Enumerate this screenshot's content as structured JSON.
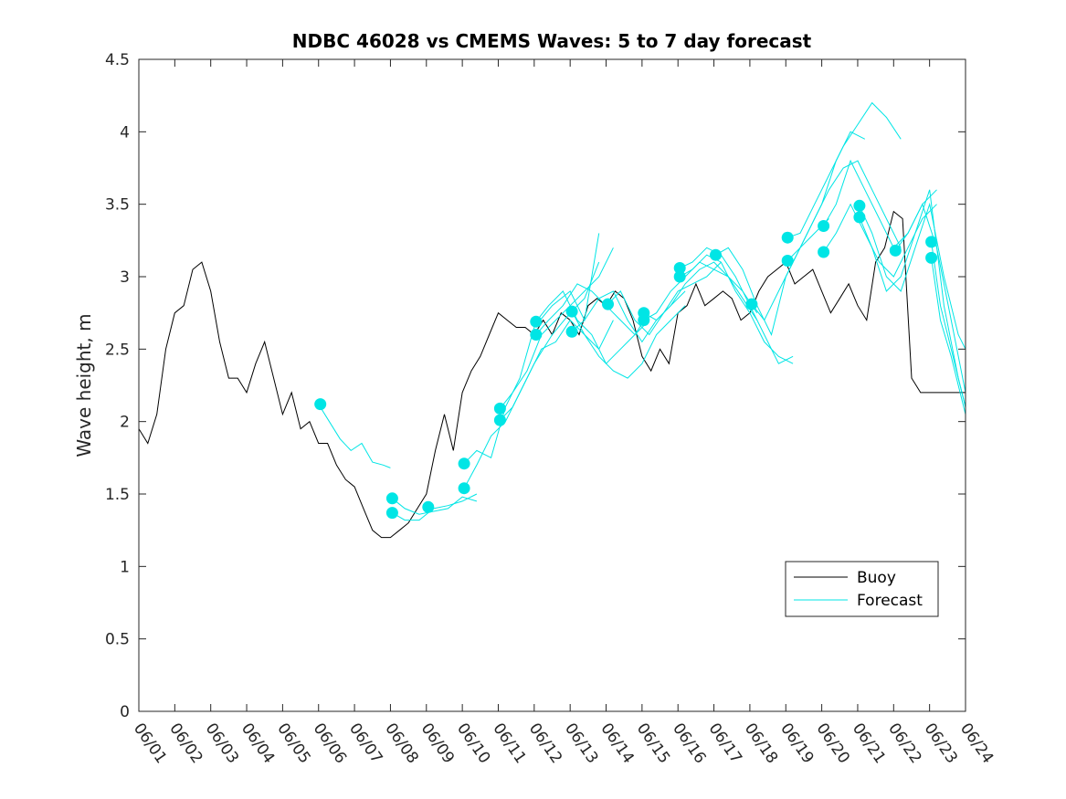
{
  "chart_data": {
    "type": "line",
    "title": "NDBC 46028 vs CMEMS Waves: 5 to 7 day forecast",
    "xlabel": "",
    "ylabel": "Wave height, m",
    "xlim": [
      0,
      23
    ],
    "ylim": [
      0,
      4.5
    ],
    "x_tick_labels": [
      "06/01",
      "06/02",
      "06/03",
      "06/04",
      "06/05",
      "06/06",
      "06/07",
      "06/08",
      "06/09",
      "06/10",
      "06/11",
      "06/12",
      "06/13",
      "06/14",
      "06/15",
      "06/16",
      "06/17",
      "06/18",
      "06/19",
      "06/20",
      "06/21",
      "06/22",
      "06/23",
      "06/24"
    ],
    "y_ticks": [
      0,
      0.5,
      1,
      1.5,
      2,
      2.5,
      3,
      3.5,
      4,
      4.5
    ],
    "y_tick_labels": [
      "0",
      "0.5",
      "1",
      "1.5",
      "2",
      "2.5",
      "3",
      "3.5",
      "4",
      "4.5"
    ],
    "x_units": "days since 06/01",
    "legend": {
      "position": "bottom-right",
      "entries": [
        "Buoy",
        "Forecast"
      ]
    },
    "colors": {
      "buoy": "#000000",
      "forecast": "#00e5e5"
    },
    "series": [
      {
        "name": "Buoy",
        "style": "line",
        "x": [
          0,
          0.25,
          0.5,
          0.75,
          1.0,
          1.25,
          1.5,
          1.75,
          2.0,
          2.25,
          2.5,
          2.75,
          3.0,
          3.25,
          3.5,
          3.75,
          4.0,
          4.25,
          4.5,
          4.75,
          5.0,
          5.25,
          5.5,
          5.75,
          6.0,
          6.25,
          6.5,
          6.75,
          7.0,
          7.25,
          7.5,
          7.75,
          8.0,
          8.25,
          8.5,
          8.75,
          9.0,
          9.25,
          9.5,
          9.75,
          10.0,
          10.25,
          10.5,
          10.75,
          11.0,
          11.25,
          11.5,
          11.75,
          12.0,
          12.25,
          12.5,
          12.75,
          13.0,
          13.25,
          13.5,
          13.75,
          14.0,
          14.25,
          14.5,
          14.75,
          15.0,
          15.25,
          15.5,
          15.75,
          16.0,
          16.25,
          16.5,
          16.75,
          17.0,
          17.25,
          17.5,
          17.75,
          18.0,
          18.25,
          18.5,
          18.75,
          19.0,
          19.25,
          19.5,
          19.75,
          20.0,
          20.25,
          20.5,
          20.75,
          21.0,
          21.25,
          21.5,
          21.75,
          22.0,
          22.25,
          22.5,
          22.75,
          23.0
        ],
        "y": [
          1.95,
          1.85,
          2.05,
          2.5,
          2.75,
          2.8,
          3.05,
          3.1,
          2.9,
          2.55,
          2.3,
          2.3,
          2.2,
          2.4,
          2.55,
          2.3,
          2.05,
          2.2,
          1.95,
          2.0,
          1.85,
          1.85,
          1.7,
          1.6,
          1.55,
          1.4,
          1.25,
          1.2,
          1.2,
          1.25,
          1.3,
          1.4,
          1.5,
          1.8,
          2.05,
          1.8,
          2.2,
          2.35,
          2.45,
          2.6,
          2.75,
          2.7,
          2.65,
          2.65,
          2.6,
          2.7,
          2.6,
          2.75,
          2.7,
          2.6,
          2.8,
          2.85,
          2.8,
          2.9,
          2.85,
          2.7,
          2.45,
          2.35,
          2.5,
          2.4,
          2.75,
          2.8,
          2.95,
          2.8,
          2.85,
          2.9,
          2.85,
          2.7,
          2.75,
          2.9,
          3.0,
          3.05,
          3.1,
          2.95,
          3.0,
          3.05,
          2.9,
          2.75,
          2.85,
          2.95,
          2.8,
          2.7,
          3.1,
          3.2,
          3.45,
          3.4,
          2.3,
          2.2,
          2.2,
          2.2,
          2.2,
          2.2,
          2.2
        ]
      },
      {
        "name": "Forecast",
        "style": "line",
        "x": [
          5.0,
          5.3,
          5.6,
          5.9,
          6.2,
          6.5,
          6.8,
          7.0
        ],
        "y": [
          2.12,
          2.0,
          1.88,
          1.8,
          1.85,
          1.72,
          1.7,
          1.68
        ]
      },
      {
        "style": "line",
        "x": [
          7.05,
          7.4,
          7.8,
          8.2,
          8.6,
          9.0,
          9.4
        ],
        "y": [
          1.47,
          1.4,
          1.36,
          1.38,
          1.4,
          1.48,
          1.45
        ]
      },
      {
        "style": "line",
        "x": [
          7.05,
          7.4,
          7.8,
          8.2,
          8.6,
          9.0,
          9.4
        ],
        "y": [
          1.37,
          1.32,
          1.32,
          1.4,
          1.42,
          1.45,
          1.5
        ]
      },
      {
        "style": "line",
        "x": [
          9.05,
          9.4,
          9.8,
          10.2,
          10.6,
          11.0,
          11.5,
          12.0,
          12.4,
          12.8
        ],
        "y": [
          1.71,
          1.8,
          1.75,
          2.1,
          2.3,
          2.65,
          2.8,
          2.9,
          2.7,
          3.3
        ]
      },
      {
        "style": "line",
        "x": [
          9.05,
          9.4,
          9.8,
          10.2,
          10.6,
          11.0,
          11.5,
          12.0,
          12.4,
          12.8
        ],
        "y": [
          1.54,
          1.7,
          1.9,
          2.0,
          2.2,
          2.4,
          2.6,
          2.75,
          2.85,
          3.1
        ]
      },
      {
        "style": "line",
        "x": [
          10.05,
          10.4,
          10.8,
          11.2,
          11.6,
          12.0,
          12.4,
          12.8,
          13.2
        ],
        "y": [
          2.09,
          2.2,
          2.35,
          2.6,
          2.7,
          2.8,
          2.9,
          3.0,
          3.2
        ]
      },
      {
        "style": "line",
        "x": [
          10.05,
          10.4,
          10.8,
          11.2,
          11.6,
          12.0,
          12.4,
          12.8,
          13.2
        ],
        "y": [
          2.01,
          2.1,
          2.3,
          2.5,
          2.55,
          2.7,
          2.6,
          2.5,
          2.7
        ]
      },
      {
        "style": "line",
        "x": [
          11.05,
          11.4,
          11.8,
          12.2,
          12.6,
          13.0,
          13.4,
          13.8,
          14.2
        ],
        "y": [
          2.69,
          2.8,
          2.9,
          2.7,
          2.6,
          2.4,
          2.5,
          2.6,
          2.7
        ]
      },
      {
        "style": "line",
        "x": [
          11.05,
          11.4,
          11.8,
          12.2,
          12.6,
          13.0,
          13.4,
          13.8,
          14.2
        ],
        "y": [
          2.6,
          2.7,
          2.8,
          2.95,
          2.9,
          2.8,
          2.7,
          2.6,
          2.75
        ]
      },
      {
        "style": "line",
        "x": [
          12.05,
          12.4,
          12.8,
          13.2,
          13.6,
          14.0,
          14.4,
          14.8,
          15.2
        ],
        "y": [
          2.76,
          2.6,
          2.45,
          2.35,
          2.3,
          2.4,
          2.6,
          2.7,
          2.8
        ]
      },
      {
        "style": "line",
        "x": [
          12.05,
          12.4,
          12.8,
          13.2,
          13.6,
          14.0,
          14.4,
          14.8,
          15.2
        ],
        "y": [
          2.62,
          2.7,
          2.85,
          2.9,
          2.7,
          2.55,
          2.7,
          2.8,
          2.9
        ]
      },
      {
        "style": "line",
        "x": [
          13.05,
          13.4,
          13.8,
          14.2,
          14.6,
          15.0,
          15.4,
          15.8,
          16.2
        ],
        "y": [
          2.81,
          2.9,
          2.7,
          2.6,
          2.75,
          2.9,
          2.95,
          3.0,
          3.1
        ]
      },
      {
        "style": "line",
        "x": [
          14.05,
          14.4,
          14.8,
          15.2,
          15.6,
          16.0,
          16.4,
          16.8,
          17.2
        ],
        "y": [
          2.75,
          2.7,
          2.8,
          2.95,
          3.05,
          3.1,
          3.0,
          2.9,
          2.75
        ]
      },
      {
        "style": "line",
        "x": [
          14.05,
          14.4,
          14.8,
          15.2,
          15.6,
          16.0,
          16.4,
          16.8,
          17.2
        ],
        "y": [
          2.7,
          2.75,
          2.9,
          3.0,
          3.1,
          3.05,
          3.0,
          2.85,
          2.7
        ]
      },
      {
        "style": "line",
        "x": [
          15.05,
          15.4,
          15.8,
          16.2,
          16.6,
          17.0,
          17.4,
          17.8,
          18.2
        ],
        "y": [
          3.06,
          3.1,
          3.2,
          3.15,
          3.0,
          2.8,
          2.6,
          2.4,
          2.45
        ]
      },
      {
        "style": "line",
        "x": [
          15.05,
          15.4,
          15.8,
          16.2,
          16.6,
          17.0,
          17.4,
          17.8,
          18.2
        ],
        "y": [
          3.0,
          3.05,
          3.15,
          3.1,
          2.9,
          2.75,
          2.55,
          2.45,
          2.4
        ]
      },
      {
        "style": "line",
        "x": [
          16.05,
          16.4,
          16.8,
          17.2,
          17.6,
          18.0,
          18.4,
          18.8,
          19.2
        ],
        "y": [
          3.15,
          3.2,
          3.05,
          2.8,
          2.6,
          3.0,
          3.2,
          3.3,
          3.4
        ]
      },
      {
        "style": "line",
        "x": [
          17.05,
          17.4,
          17.8,
          18.2,
          18.6,
          19.0,
          19.4,
          19.8,
          20.2
        ],
        "y": [
          2.81,
          2.7,
          2.9,
          3.1,
          3.3,
          3.5,
          3.8,
          4.0,
          3.95
        ]
      },
      {
        "style": "line",
        "x": [
          18.05,
          18.4,
          18.8,
          19.2,
          19.6,
          20.0,
          20.4,
          20.8,
          21.2
        ],
        "y": [
          3.27,
          3.3,
          3.5,
          3.7,
          3.9,
          4.05,
          4.2,
          4.1,
          3.95
        ]
      },
      {
        "style": "line",
        "x": [
          18.05,
          18.4,
          18.8,
          19.2,
          19.6,
          20.0,
          20.4,
          20.8,
          21.2
        ],
        "y": [
          3.11,
          3.2,
          3.4,
          3.6,
          3.75,
          3.8,
          3.6,
          3.4,
          3.2
        ]
      },
      {
        "style": "line",
        "x": [
          19.05,
          19.4,
          19.8,
          20.2,
          20.6,
          21.0,
          21.4,
          21.8,
          22.2
        ],
        "y": [
          3.35,
          3.5,
          3.8,
          3.6,
          3.4,
          3.2,
          3.3,
          3.5,
          3.6
        ]
      },
      {
        "style": "line",
        "x": [
          19.05,
          19.4,
          19.8,
          20.2,
          20.6,
          21.0,
          21.4,
          21.8,
          22.2
        ],
        "y": [
          3.17,
          3.3,
          3.5,
          3.3,
          3.1,
          3.0,
          3.2,
          3.4,
          3.5
        ]
      },
      {
        "style": "line",
        "x": [
          20.05,
          20.4,
          20.8,
          21.2,
          21.6,
          22.0,
          22.4,
          22.8,
          23.0
        ],
        "y": [
          3.49,
          3.3,
          3.0,
          2.9,
          3.2,
          3.5,
          3.0,
          2.6,
          2.5
        ]
      },
      {
        "style": "line",
        "x": [
          20.05,
          20.4,
          20.8,
          21.2,
          21.6,
          22.0,
          22.4,
          22.8,
          23.0
        ],
        "y": [
          3.41,
          3.2,
          2.9,
          3.0,
          3.3,
          3.6,
          2.8,
          2.3,
          2.1
        ]
      },
      {
        "style": "line",
        "x": [
          21.05,
          21.4,
          21.8,
          22.2,
          22.6,
          23.0
        ],
        "y": [
          3.18,
          3.3,
          3.5,
          3.2,
          2.7,
          2.2
        ]
      },
      {
        "style": "line",
        "x": [
          22.05,
          22.3,
          22.6,
          22.8,
          23.0
        ],
        "y": [
          3.24,
          2.8,
          2.5,
          2.3,
          2.1
        ]
      },
      {
        "style": "line",
        "x": [
          22.05,
          22.3,
          22.6,
          22.8,
          23.0
        ],
        "y": [
          3.13,
          2.7,
          2.45,
          2.25,
          2.05
        ]
      },
      {
        "style": "markers",
        "x": [
          5.05,
          7.05,
          7.05,
          8.05,
          9.05,
          9.05,
          10.05,
          10.05,
          11.05,
          11.05,
          12.05,
          12.05,
          13.05,
          14.05,
          14.05,
          15.05,
          15.05,
          16.05,
          17.05,
          18.05,
          18.05,
          19.05,
          19.05,
          20.05,
          20.05,
          21.05,
          22.05,
          22.05
        ],
        "y": [
          2.12,
          1.47,
          1.37,
          1.41,
          1.71,
          1.54,
          2.09,
          2.01,
          2.69,
          2.6,
          2.76,
          2.62,
          2.81,
          2.75,
          2.7,
          3.06,
          3.0,
          3.15,
          2.81,
          3.27,
          3.11,
          3.35,
          3.17,
          3.49,
          3.41,
          3.18,
          3.24,
          3.13
        ]
      }
    ]
  }
}
